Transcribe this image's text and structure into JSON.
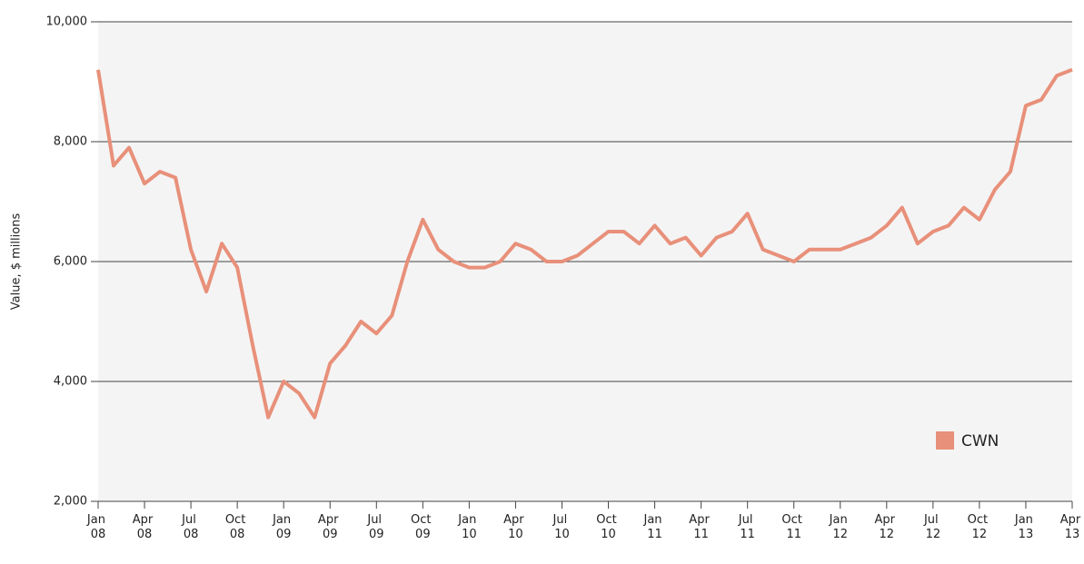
{
  "chart_data": {
    "type": "line",
    "y_label": "Value, $ millions",
    "x": [
      "Jan 08",
      "Feb 08",
      "Mar 08",
      "Apr 08",
      "May 08",
      "Jun 08",
      "Jul 08",
      "Aug 08",
      "Sep 08",
      "Oct 08",
      "Nov 08",
      "Dec 08",
      "Jan 09",
      "Feb 09",
      "Mar 09",
      "Apr 09",
      "May 09",
      "Jun 09",
      "Jul 09",
      "Aug 09",
      "Sep 09",
      "Oct 09",
      "Nov 09",
      "Dec 09",
      "Jan 10",
      "Feb 10",
      "Mar 10",
      "Apr 10",
      "May 10",
      "Jun 10",
      "Jul 10",
      "Aug 10",
      "Sep 10",
      "Oct 10",
      "Nov 10",
      "Dec 10",
      "Jan 11",
      "Feb 11",
      "Mar 11",
      "Apr 11",
      "May 11",
      "Jun 11",
      "Jul 11",
      "Aug 11",
      "Sep 11",
      "Oct 11",
      "Nov 11",
      "Dec 11",
      "Jan 12",
      "Feb 12",
      "Mar 12",
      "Apr 12",
      "May 12",
      "Jun 12",
      "Jul 12",
      "Aug 12",
      "Sep 12",
      "Oct 12",
      "Nov 12",
      "Dec 12",
      "Jan 13",
      "Feb 13",
      "Mar 13",
      "Apr 13"
    ],
    "series": [
      {
        "name": "CWN",
        "color": "#e8907a",
        "values": [
          9200,
          7600,
          7900,
          7300,
          7500,
          7400,
          6200,
          5500,
          6300,
          5900,
          4600,
          3400,
          4000,
          3800,
          3400,
          4300,
          4600,
          5000,
          4800,
          5100,
          6000,
          6700,
          6200,
          6000,
          5900,
          5900,
          6000,
          6300,
          6200,
          6000,
          6000,
          6100,
          6300,
          6500,
          6500,
          6300,
          6600,
          6300,
          6400,
          6100,
          6400,
          6500,
          6800,
          6200,
          6100,
          6000,
          6200,
          6200,
          6200,
          6300,
          6400,
          6600,
          6900,
          6300,
          6500,
          6600,
          6900,
          6700,
          7200,
          7500,
          8600,
          8700,
          9100,
          9200
        ]
      }
    ],
    "xticks": [
      "Jan 08",
      "Apr 08",
      "Jul 08",
      "Oct 08",
      "Jan 09",
      "Apr 09",
      "Jul 09",
      "Oct 09",
      "Jan 10",
      "Apr 10",
      "Jul 10",
      "Oct 10",
      "Jan 11",
      "Apr 11",
      "Jul 11",
      "Oct 11",
      "Jan 12",
      "Apr 12",
      "Jul 12",
      "Oct 12",
      "Jan 13",
      "Apr 13"
    ],
    "ylim": [
      2000,
      10000
    ],
    "yticks": [
      {
        "value": 2000,
        "label": "2,000"
      },
      {
        "value": 4000,
        "label": "4,000"
      },
      {
        "value": 6000,
        "label": "6,000"
      },
      {
        "value": 8000,
        "label": "8,000"
      },
      {
        "value": 10000,
        "label": "10,000"
      }
    ],
    "grid": true,
    "legend": "lower right",
    "background": "#f4f4f4"
  }
}
